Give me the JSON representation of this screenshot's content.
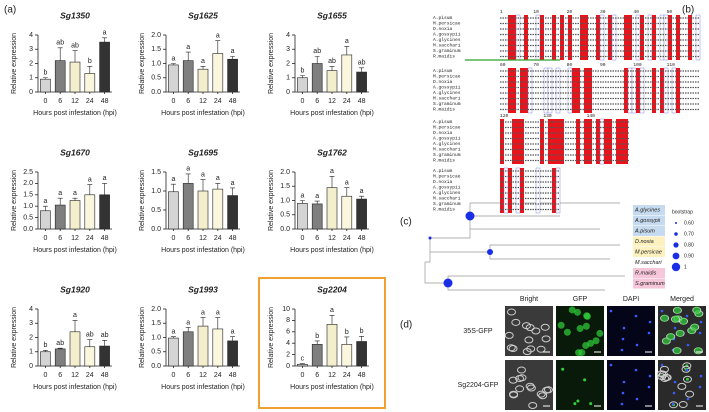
{
  "panel_labels": [
    "(a)",
    "(b)",
    "(c)",
    "(d)"
  ],
  "chart_data": [
    {
      "type": "bar",
      "title": "Sg1350",
      "ylabel": "Relative expression",
      "xlabel": "Hours post infestation (hpi)",
      "categories": [
        "0",
        "6",
        "12",
        "24",
        "48"
      ],
      "colors": [
        "#d4d4d4",
        "#7f7f7f",
        "#f3eecb",
        "#fbf7df",
        "#333333"
      ],
      "values": [
        0.9,
        2.2,
        2.1,
        1.3,
        3.5
      ],
      "errors": [
        0.1,
        0.9,
        0.8,
        0.5,
        0.3
      ],
      "annotations": [
        "b",
        "ab",
        "ab",
        "b",
        "a"
      ],
      "ylim": [
        0,
        4
      ],
      "yticks": [
        0,
        1,
        2,
        3,
        4
      ]
    },
    {
      "type": "bar",
      "title": "Sg1625",
      "ylabel": "Relative expression",
      "xlabel": "Hours post infestation (hpi)",
      "categories": [
        "0",
        "6",
        "12",
        "24",
        "48"
      ],
      "colors": [
        "#d4d4d4",
        "#7f7f7f",
        "#f3eecb",
        "#fbf7df",
        "#333333"
      ],
      "values": [
        0.95,
        1.1,
        0.8,
        1.35,
        1.15
      ],
      "errors": [
        0.05,
        0.3,
        0.1,
        0.45,
        0.1
      ],
      "annotations": [
        "a",
        "a",
        "a",
        "a",
        "a"
      ],
      "ylim": [
        0,
        2
      ],
      "yticks": [
        {
          "value": 0,
          "label": "0.0"
        },
        0.5,
        {
          "value": 1,
          "label": "1.0"
        },
        1.5,
        {
          "value": 2,
          "label": "2.0"
        }
      ]
    },
    {
      "type": "bar",
      "title": "Sg1655",
      "ylabel": "Relative expression",
      "xlabel": "Hours post infestation (hpi)",
      "categories": [
        "0",
        "6",
        "12",
        "24",
        "48"
      ],
      "colors": [
        "#d4d4d4",
        "#7f7f7f",
        "#f3eecb",
        "#fbf7df",
        "#333333"
      ],
      "values": [
        1.0,
        2.0,
        1.5,
        2.6,
        1.4
      ],
      "errors": [
        0.15,
        0.5,
        0.3,
        0.6,
        0.3
      ],
      "annotations": [
        "b",
        "ab",
        "ab",
        "a",
        "ab"
      ],
      "ylim": [
        0,
        4
      ],
      "yticks": [
        0,
        1,
        2,
        3,
        4
      ]
    },
    {
      "type": "bar",
      "title": "Sg1670",
      "ylabel": "Relative expression",
      "xlabel": "Hours post infestation (hpi)",
      "categories": [
        "0",
        "6",
        "12",
        "24",
        "48"
      ],
      "colors": [
        "#d4d4d4",
        "#7f7f7f",
        "#f3eecb",
        "#fbf7df",
        "#333333"
      ],
      "values": [
        0.8,
        1.05,
        1.25,
        1.5,
        1.5
      ],
      "errors": [
        0.2,
        0.3,
        0.1,
        0.45,
        0.5
      ],
      "annotations": [
        "a",
        "a",
        "a",
        "a",
        "a"
      ],
      "ylim": [
        0,
        2.5
      ],
      "yticks": [
        {
          "value": 0,
          "label": "0.0"
        },
        0.5,
        {
          "value": 1,
          "label": "1.0"
        },
        1.5,
        {
          "value": 2,
          "label": "2.0"
        },
        2.5
      ]
    },
    {
      "type": "bar",
      "title": "Sg1695",
      "ylabel": "Relative expression",
      "xlabel": "Hours post infestation (hpi)",
      "categories": [
        "0",
        "6",
        "12",
        "24",
        "48"
      ],
      "colors": [
        "#d4d4d4",
        "#7f7f7f",
        "#f3eecb",
        "#fbf7df",
        "#333333"
      ],
      "values": [
        0.98,
        1.2,
        1.0,
        1.05,
        0.88
      ],
      "errors": [
        0.2,
        0.25,
        0.3,
        0.15,
        0.2
      ],
      "annotations": [
        "a",
        "a",
        "a",
        "a",
        "a"
      ],
      "ylim": [
        0,
        1.5
      ],
      "yticks": [
        {
          "value": 0,
          "label": "0.0"
        },
        0.5,
        {
          "value": 1,
          "label": "1.0"
        },
        1.5
      ]
    },
    {
      "type": "bar",
      "title": "Sg1762",
      "ylabel": "Relative expression",
      "xlabel": "Hours post infestation (hpi)",
      "categories": [
        "0",
        "6",
        "12",
        "24",
        "48"
      ],
      "colors": [
        "#d4d4d4",
        "#7f7f7f",
        "#f3eecb",
        "#fbf7df",
        "#333333"
      ],
      "values": [
        0.9,
        0.88,
        1.45,
        1.15,
        1.05
      ],
      "errors": [
        0.1,
        0.1,
        0.4,
        0.3,
        0.1
      ],
      "annotations": [
        "a",
        "a",
        "a",
        "a",
        "a"
      ],
      "ylim": [
        0,
        2
      ],
      "yticks": [
        {
          "value": 0,
          "label": "0.0"
        },
        0.5,
        {
          "value": 1,
          "label": "1.0"
        },
        1.5,
        {
          "value": 2,
          "label": "2.0"
        }
      ]
    },
    {
      "type": "bar",
      "title": "Sg1920",
      "ylabel": "Relative expression",
      "xlabel": "Hours post infestation (hpi)",
      "categories": [
        "0",
        "6",
        "12",
        "24",
        "48"
      ],
      "colors": [
        "#d4d4d4",
        "#7f7f7f",
        "#f3eecb",
        "#fbf7df",
        "#333333"
      ],
      "values": [
        1.0,
        1.2,
        2.4,
        1.35,
        1.4
      ],
      "errors": [
        0.1,
        0.05,
        0.8,
        0.5,
        0.4
      ],
      "annotations": [
        "b",
        "ab",
        "a",
        "ab",
        "ab"
      ],
      "ylim": [
        0,
        4
      ],
      "yticks": [
        0,
        1,
        2,
        3,
        4
      ]
    },
    {
      "type": "bar",
      "title": "Sg1993",
      "ylabel": "Relative expression",
      "xlabel": "Hours post infestation (hpi)",
      "categories": [
        "0",
        "6",
        "12",
        "24",
        "48"
      ],
      "colors": [
        "#d4d4d4",
        "#7f7f7f",
        "#f3eecb",
        "#fbf7df",
        "#333333"
      ],
      "values": [
        0.98,
        1.2,
        1.4,
        1.3,
        0.88
      ],
      "errors": [
        0.05,
        0.15,
        0.3,
        0.4,
        0.15
      ],
      "annotations": [
        "a",
        "a",
        "a",
        "a",
        "a"
      ],
      "ylim": [
        0,
        2
      ],
      "yticks": [
        {
          "value": 0,
          "label": "0.0"
        },
        0.5,
        {
          "value": 1,
          "label": "1.0"
        },
        1.5,
        {
          "value": 2,
          "label": "2.0"
        }
      ]
    },
    {
      "type": "bar",
      "title": "Sg2204",
      "ylabel": "Relative expression",
      "xlabel": "Hours post infestation (hpi)",
      "categories": [
        "0",
        "6",
        "12",
        "24",
        "48"
      ],
      "colors": [
        "#d4d4d4",
        "#7f7f7f",
        "#f3eecb",
        "#fbf7df",
        "#333333"
      ],
      "values": [
        0.3,
        3.8,
        7.3,
        3.8,
        4.3
      ],
      "errors": [
        0.1,
        0.6,
        1.6,
        1.3,
        0.9
      ],
      "annotations": [
        "c",
        "b",
        "a",
        "b",
        "b"
      ],
      "ylim": [
        0,
        10
      ],
      "yticks": [
        0,
        2,
        4,
        6,
        8,
        10
      ],
      "highlight_color": "#f0a030"
    }
  ],
  "alignment": {
    "species": [
      "A.pisum",
      "M.persicae",
      "D.noxia",
      "A.gossypii",
      "A.glycines",
      "M.sacchari",
      "S.graminum",
      "R.maidis"
    ],
    "positions": [
      [
        "1",
        "10",
        "20",
        "30",
        "40",
        "50"
      ],
      [
        "60",
        "70",
        "80",
        "90",
        "100",
        "110"
      ],
      [
        "120",
        "130",
        "140"
      ],
      []
    ]
  },
  "tree": {
    "taxa": [
      "A.glycines",
      "A.gossypii",
      "A.pisum",
      "D.noxia",
      "M.persicae",
      "M.sacchari",
      "R.maidis",
      "S.graminum"
    ],
    "bootstrap_title": "bootstrap",
    "bootstrap_values": [
      "0.60",
      "0.70",
      "0.80",
      "0.90",
      "1"
    ]
  },
  "microscopy": {
    "columns": [
      "Bright",
      "GFP",
      "DAPI",
      "Merged"
    ],
    "rows": [
      "35S-GFP",
      "Sg2204-GFP"
    ]
  }
}
